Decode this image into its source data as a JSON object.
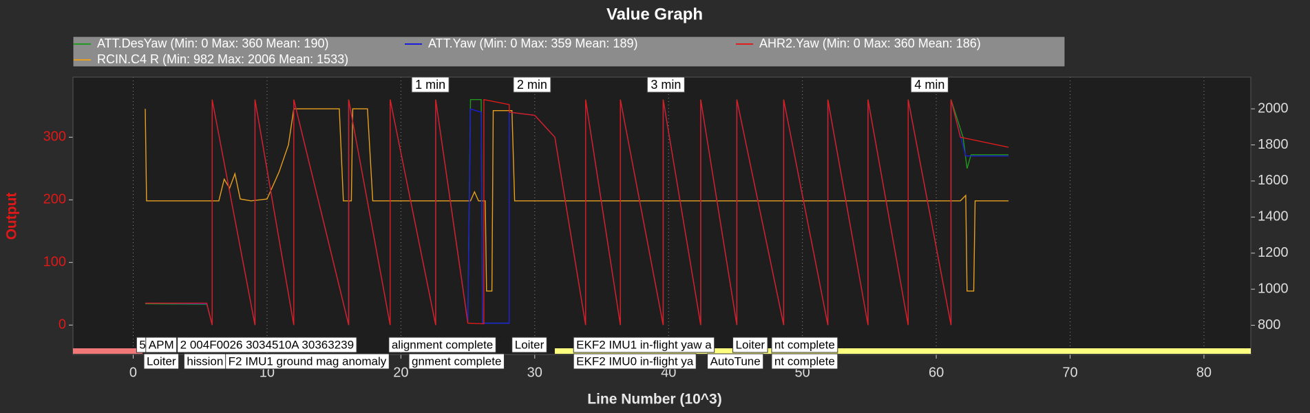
{
  "chart_data": {
    "type": "line",
    "title": "Value Graph",
    "xlabel": "Line Number (10^3)",
    "ylabel": "Output",
    "xlim": [
      -4.5,
      83.5
    ],
    "xticks": [
      0,
      10,
      20,
      30,
      40,
      50,
      60,
      70,
      80
    ],
    "ylim": [
      -47,
      396
    ],
    "yticks": [
      0,
      100,
      200,
      300
    ],
    "y2lim": [
      638,
      2176
    ],
    "y2ticks": [
      800,
      1000,
      1200,
      1400,
      1600,
      1800,
      2000
    ],
    "grid": true,
    "series": [
      {
        "name": "ATT.DesYaw (Min: 0 Max: 360 Mean: 190)",
        "color": "#1f9a1f",
        "x": [
          0.9,
          5.5,
          5.9,
          5.9,
          9.1,
          9.1,
          12.0,
          12.0,
          16.1,
          16.1,
          19.2,
          19.2,
          22.6,
          22.6,
          25.0,
          25.2,
          26.0,
          26.1,
          28.1,
          28.1,
          30.0,
          31.5,
          33.8,
          33.8,
          36.4,
          36.4,
          39.6,
          39.6,
          42.4,
          42.4,
          45.1,
          45.1,
          48.6,
          48.6,
          51.9,
          51.9,
          54.9,
          54.9,
          57.9,
          57.9,
          61.1,
          61.1,
          62.0,
          62.3,
          62.6,
          65.4
        ],
        "values": [
          34,
          33,
          0,
          360,
          0,
          360,
          0,
          360,
          0,
          360,
          0,
          360,
          0,
          360,
          5,
          360,
          360,
          3,
          3,
          340,
          335,
          300,
          0,
          360,
          0,
          360,
          0,
          360,
          0,
          360,
          0,
          360,
          0,
          360,
          0,
          360,
          0,
          360,
          0,
          360,
          0,
          360,
          300,
          250,
          272,
          272
        ]
      },
      {
        "name": "ATT.Yaw (Min: 0 Max: 359 Mean: 189)",
        "color": "#1c1cdc",
        "x": [
          0.9,
          5.5,
          5.9,
          5.9,
          9.1,
          9.1,
          12.0,
          12.0,
          16.1,
          16.1,
          19.2,
          19.2,
          22.6,
          22.6,
          25.0,
          25.2,
          26.0,
          26.1,
          28.1,
          28.1,
          30.0,
          31.5,
          33.8,
          33.8,
          36.4,
          36.4,
          39.6,
          39.6,
          42.4,
          42.4,
          45.1,
          45.1,
          48.6,
          48.6,
          51.9,
          51.9,
          54.9,
          54.9,
          57.9,
          57.9,
          61.1,
          61.1,
          62.2,
          65.4
        ],
        "values": [
          35,
          34,
          0,
          359,
          0,
          359,
          0,
          359,
          0,
          359,
          0,
          359,
          0,
          359,
          5,
          345,
          340,
          3,
          3,
          340,
          335,
          300,
          0,
          359,
          0,
          359,
          0,
          359,
          0,
          359,
          0,
          359,
          0,
          359,
          0,
          359,
          0,
          359,
          0,
          359,
          0,
          359,
          270,
          270
        ]
      },
      {
        "name": "AHR2.Yaw (Min: 0 Max: 360 Mean: 186)",
        "color": "#e01c1c",
        "x": [
          0.9,
          5.5,
          5.9,
          5.9,
          9.1,
          9.1,
          12.0,
          12.0,
          16.1,
          16.1,
          19.2,
          19.2,
          22.6,
          22.6,
          25.0,
          26.2,
          26.2,
          28.1,
          28.1,
          30.0,
          31.5,
          33.8,
          33.8,
          36.4,
          36.4,
          39.6,
          39.6,
          42.4,
          42.4,
          45.1,
          45.1,
          48.6,
          48.6,
          51.9,
          51.9,
          54.9,
          54.9,
          57.9,
          57.9,
          61.1,
          61.1,
          61.8,
          65.4
        ],
        "values": [
          35,
          35,
          0,
          360,
          0,
          360,
          0,
          360,
          0,
          360,
          0,
          360,
          0,
          360,
          3,
          2,
          360,
          352,
          340,
          335,
          300,
          0,
          360,
          0,
          360,
          0,
          360,
          0,
          360,
          0,
          360,
          0,
          360,
          0,
          360,
          0,
          360,
          0,
          360,
          0,
          360,
          300,
          284
        ]
      },
      {
        "name": "RCIN.C4 R (Min: 982 Max: 2006 Mean: 1533)",
        "color": "#e8a020",
        "axis": "y2",
        "x": [
          0.9,
          1.0,
          6.4,
          6.8,
          7.2,
          7.6,
          8.0,
          8.8,
          10.0,
          10.9,
          11.6,
          12.0,
          15.4,
          15.7,
          16.3,
          16.4,
          17.5,
          17.9,
          25.2,
          25.5,
          25.8,
          26.3,
          26.4,
          26.8,
          26.9,
          28.3,
          28.5,
          61.8,
          62.2,
          62.3,
          62.8,
          62.9,
          65.4
        ],
        "values": [
          2000,
          1490,
          1490,
          1610,
          1560,
          1640,
          1500,
          1490,
          1500,
          1650,
          1800,
          2000,
          2000,
          1490,
          1490,
          2000,
          2000,
          1490,
          1490,
          1540,
          1490,
          1490,
          990,
          990,
          1990,
          1990,
          1490,
          1490,
          1520,
          990,
          990,
          1490,
          1490
        ]
      }
    ],
    "annotations": [
      {
        "text": "1 min",
        "x": 22.2
      },
      {
        "text": "2 min",
        "x": 29.8
      },
      {
        "text": "3 min",
        "x": 39.8
      },
      {
        "text": "4 min",
        "x": 59.5
      }
    ],
    "bands": [
      {
        "x": [
          -4.5,
          0.7
        ],
        "color": "#f07878"
      },
      {
        "x": [
          31.5,
          83.5
        ],
        "color": "#ffff80"
      }
    ],
    "messages": [
      [
        {
          "text": "5",
          "x": 0.25
        },
        {
          "text": "APM",
          "x": 0.94
        },
        {
          "text": "2 004F0026 3034510A 30363239",
          "x": 3.3
        },
        {
          "text": "alignment complete",
          "x": 19.1
        },
        {
          "text": "Loiter",
          "x": 28.3
        },
        {
          "text": "EKF2 IMU1 in-flight yaw a",
          "x": 32.9
        },
        {
          "text": "Loiter",
          "x": 44.8
        },
        {
          "text": "nt complete",
          "x": 47.7
        }
      ],
      [
        {
          "text": "Loiter",
          "x": 0.8
        },
        {
          "text": "hission",
          "x": 3.8
        },
        {
          "text": "F2 IMU1 ground mag anomaly",
          "x": 6.9
        },
        {
          "text": "gnment complete",
          "x": 20.6
        },
        {
          "text": "EKF2 IMU0 in-flight ya",
          "x": 32.9
        },
        {
          "text": "AutoTune",
          "x": 42.9
        },
        {
          "text": "nt complete",
          "x": 47.7
        }
      ]
    ]
  }
}
